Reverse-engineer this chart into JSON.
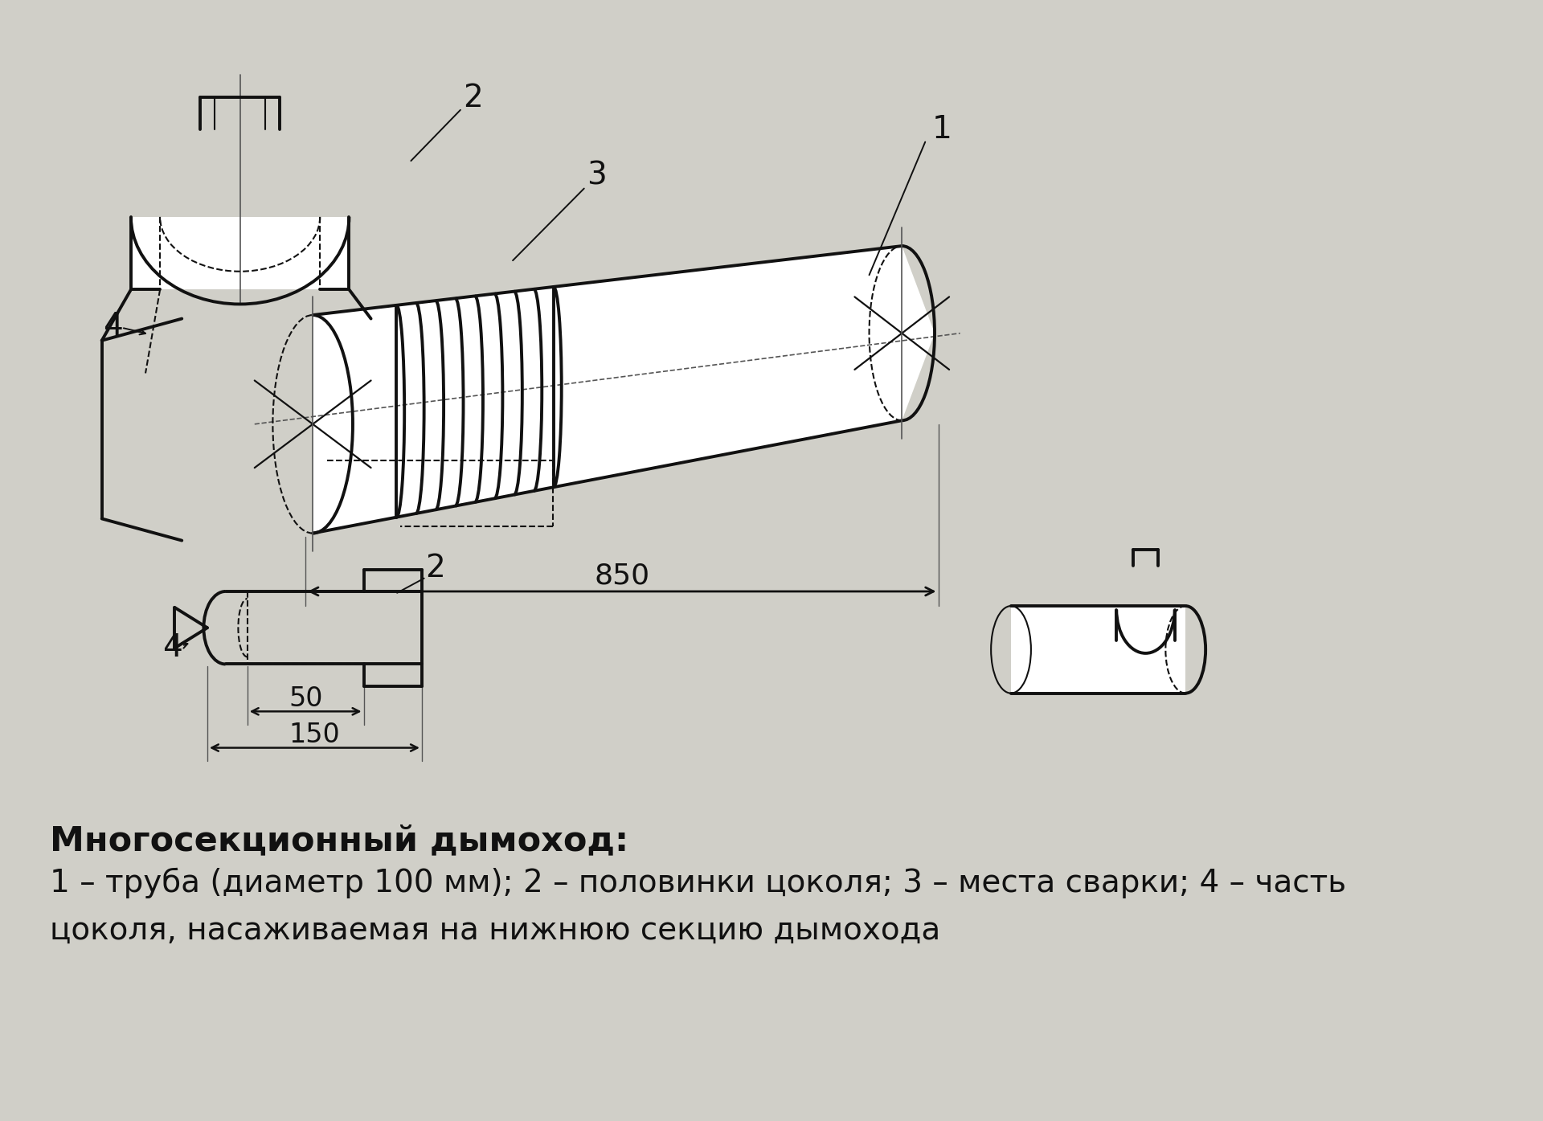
{
  "bg_color": "#d0cfc8",
  "line_color": "#111111",
  "title_text": "Многосекционный дымоход:",
  "legend_line1": "1 – труба (диаметр 100 мм); 2 – половинки цоколя; 3 – места сварки; 4 – часть",
  "legend_line2": "цоколя, насаживаемая на нижнюю секцию дымохода",
  "dim_850": "850",
  "dim_50": "50",
  "dim_150": "150"
}
